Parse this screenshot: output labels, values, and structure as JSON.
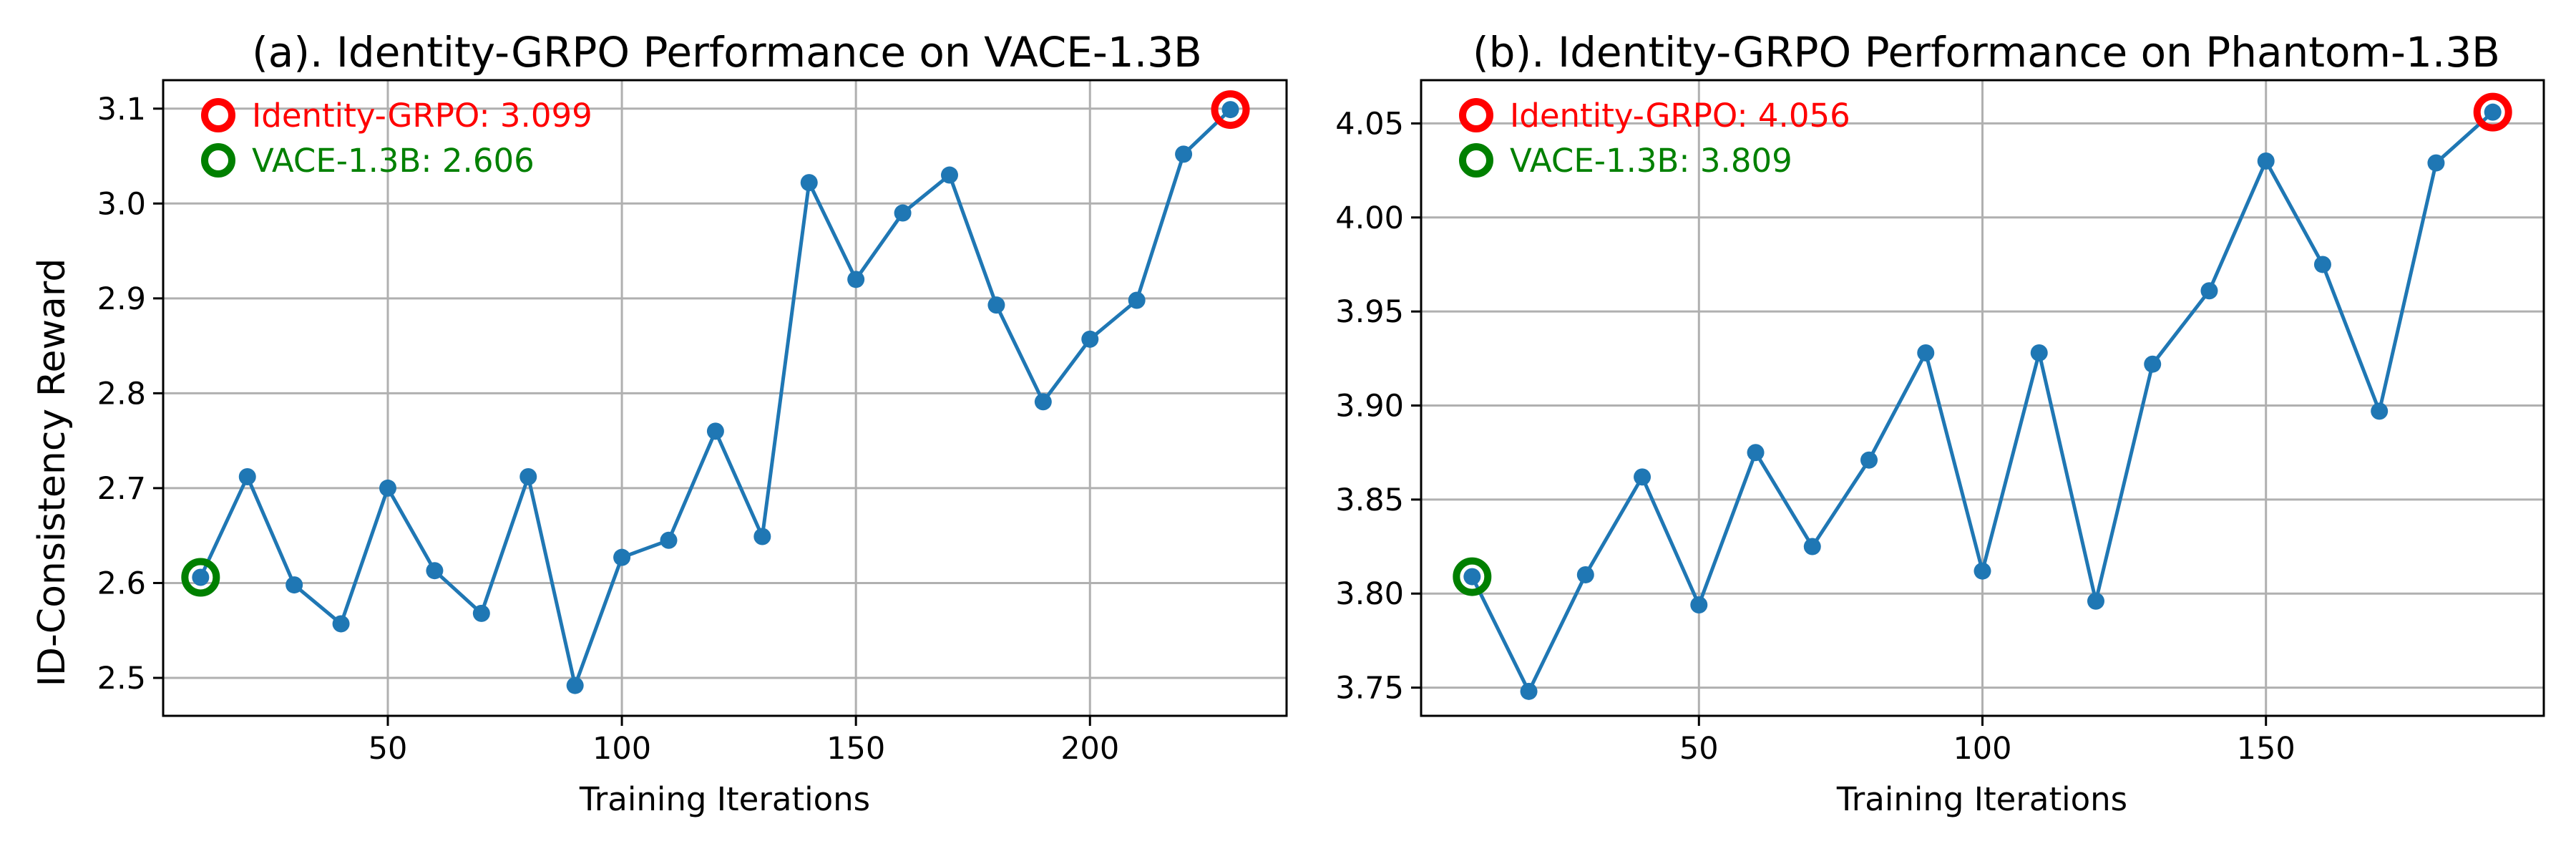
{
  "chart_data": [
    {
      "type": "line",
      "title": "(a). Identity-GRPO Performance on VACE-1.3B",
      "xlabel": "Training Iterations",
      "ylabel": "ID-Consistency Reward",
      "xlim": [
        2,
        242
      ],
      "ylim": [
        2.46,
        3.13
      ],
      "xticks": [
        50,
        100,
        150,
        200
      ],
      "yticks": [
        2.5,
        2.6,
        2.7,
        2.8,
        2.9,
        3.0,
        3.1
      ],
      "ytick_decimals": 1,
      "grid": true,
      "series": [
        {
          "color": "#1f77b4",
          "x": [
            10,
            20,
            30,
            40,
            50,
            60,
            70,
            80,
            90,
            100,
            110,
            120,
            130,
            140,
            150,
            160,
            170,
            180,
            190,
            200,
            210,
            220,
            230
          ],
          "y": [
            2.606,
            2.712,
            2.598,
            2.557,
            2.7,
            2.613,
            2.568,
            2.712,
            2.492,
            2.627,
            2.645,
            2.76,
            2.649,
            3.022,
            2.92,
            2.99,
            3.03,
            2.893,
            2.791,
            2.857,
            2.898,
            3.052,
            3.099
          ]
        }
      ],
      "highlights": [
        {
          "x": 230,
          "y": 3.099,
          "color": "#ff0000"
        },
        {
          "x": 10,
          "y": 2.606,
          "color": "#008000"
        }
      ],
      "legend_position": "top-left",
      "legend": [
        {
          "label": "Identity-GRPO: 3.099",
          "color": "#ff0000"
        },
        {
          "label": "VACE-1.3B: 2.606",
          "color": "#008000"
        }
      ]
    },
    {
      "type": "line",
      "title": "(b). Identity-GRPO Performance on Phantom-1.3B",
      "xlabel": "Training Iterations",
      "ylabel": "",
      "xlim": [
        1,
        199
      ],
      "ylim": [
        3.735,
        4.073
      ],
      "xticks": [
        50,
        100,
        150
      ],
      "yticks": [
        3.75,
        3.8,
        3.85,
        3.9,
        3.95,
        4.0,
        4.05
      ],
      "ytick_decimals": 2,
      "grid": true,
      "series": [
        {
          "color": "#1f77b4",
          "x": [
            10,
            20,
            30,
            40,
            50,
            60,
            70,
            80,
            90,
            100,
            110,
            120,
            130,
            140,
            150,
            160,
            170,
            180,
            190
          ],
          "y": [
            3.809,
            3.748,
            3.81,
            3.862,
            3.794,
            3.875,
            3.825,
            3.871,
            3.928,
            3.812,
            3.928,
            3.796,
            3.922,
            3.961,
            4.03,
            3.975,
            3.897,
            4.029,
            4.056
          ]
        }
      ],
      "highlights": [
        {
          "x": 190,
          "y": 4.056,
          "color": "#ff0000"
        },
        {
          "x": 10,
          "y": 3.809,
          "color": "#008000"
        }
      ],
      "legend_position": "top-left",
      "legend": [
        {
          "label": "Identity-GRPO: 4.056",
          "color": "#ff0000"
        },
        {
          "label": "VACE-1.3B: 3.809",
          "color": "#008000"
        }
      ]
    }
  ]
}
